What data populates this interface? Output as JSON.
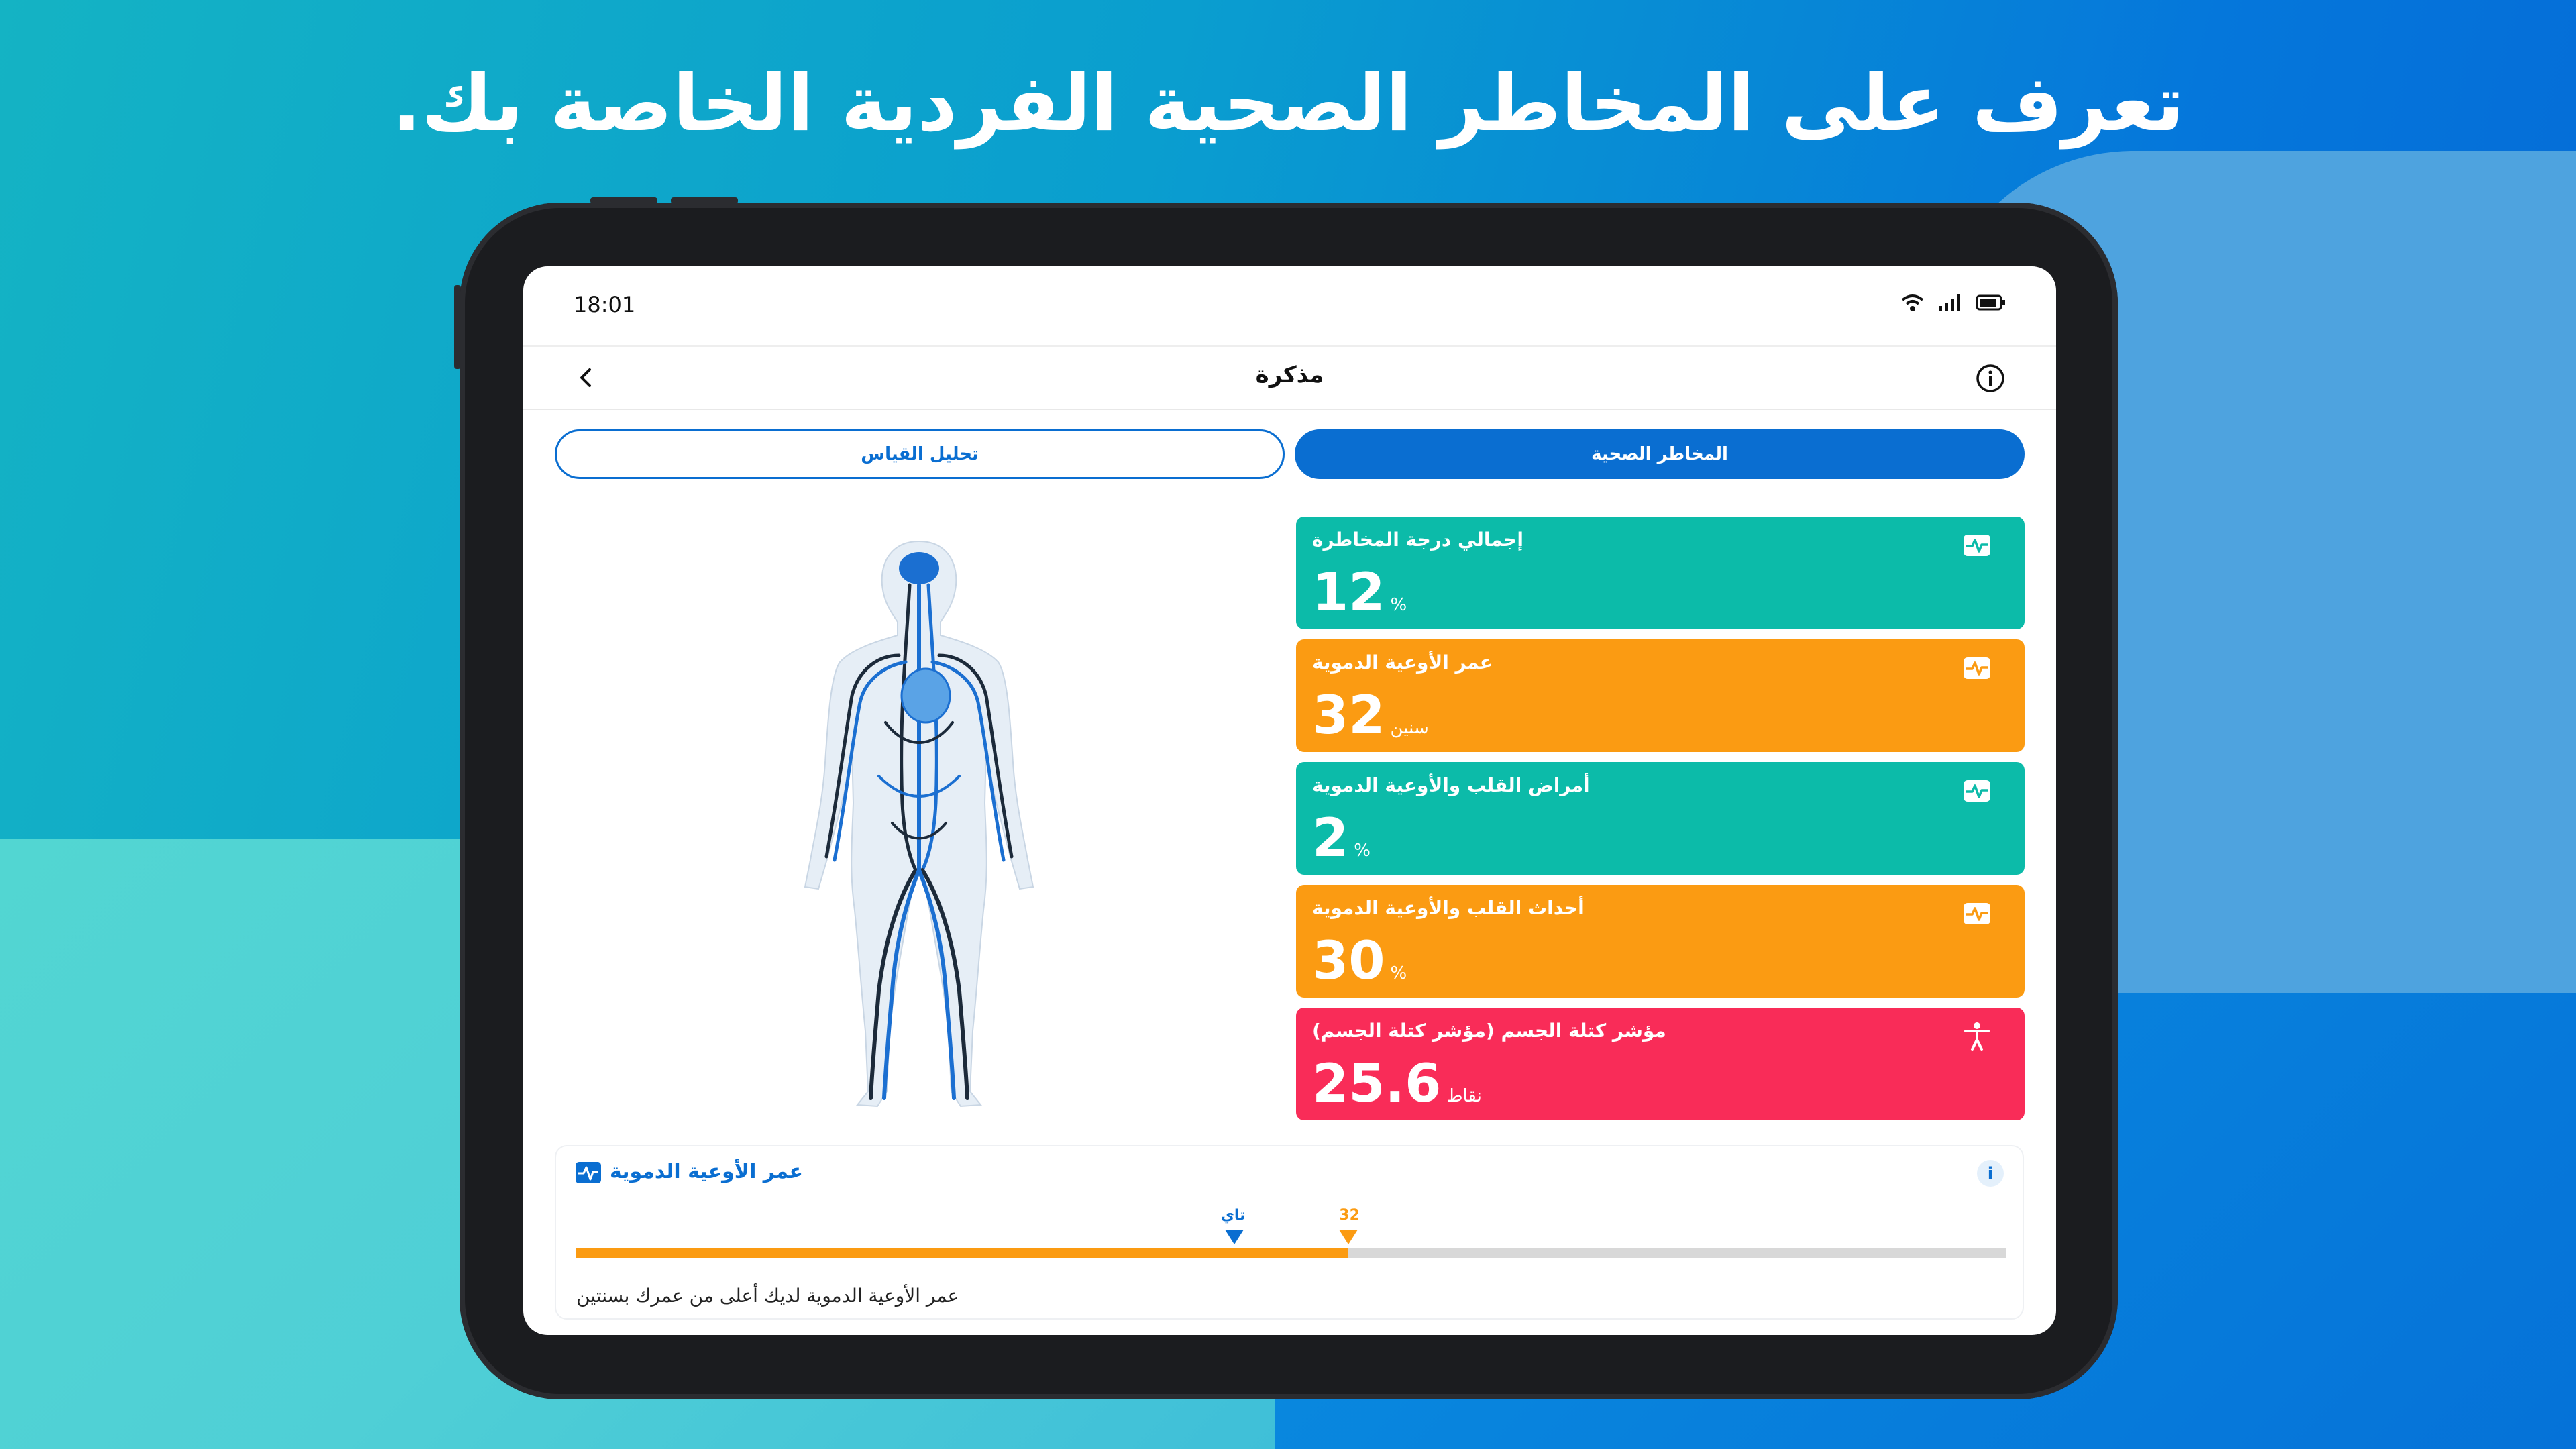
{
  "headline": "تعرف على المخاطر الصحية الفردية الخاصة بك.",
  "status": {
    "time": "18:01"
  },
  "nav": {
    "title": "مذكرة"
  },
  "tabs": {
    "left_label": "تحليل القياس",
    "right_label": "المخاطر الصحية"
  },
  "cards": [
    {
      "title": "إجمالي درجة المخاطرة",
      "value": "12",
      "unit": "%",
      "color": "#0cbba9",
      "icon": "heartbeat-icon"
    },
    {
      "title": "عمر الأوعية الدموية",
      "value": "32",
      "unit": "سنين",
      "color": "#fb9b12",
      "icon": "heartbeat-icon"
    },
    {
      "title": "أمراض القلب والأوعية الدموية",
      "value": "2",
      "unit": "%",
      "color": "#0cbba9",
      "icon": "heartbeat-icon"
    },
    {
      "title": "أحداث القلب والأوعية الدموية",
      "value": "30",
      "unit": "%",
      "color": "#fb9b12",
      "icon": "heartbeat-icon"
    },
    {
      "title": "مؤشر كتلة الجسم (مؤشر كتلة الجسم)",
      "value": "25.6",
      "unit": "نقاط",
      "color": "#f92c58",
      "icon": "person-icon"
    }
  ],
  "detail": {
    "title": "عمر الأوعية الدموية",
    "info": "i",
    "marker_actual_label": "تاي",
    "marker_vascular_label": "32",
    "progress": 0.54,
    "marker_actual_position": 0.46,
    "description": "عمر الأوعية الدموية لديك أعلى من عمرك بسنتين"
  },
  "colors": {
    "primary": "#0a6ed1",
    "teal": "#0cbba9",
    "orange": "#fb9b12",
    "red": "#f92c58"
  }
}
